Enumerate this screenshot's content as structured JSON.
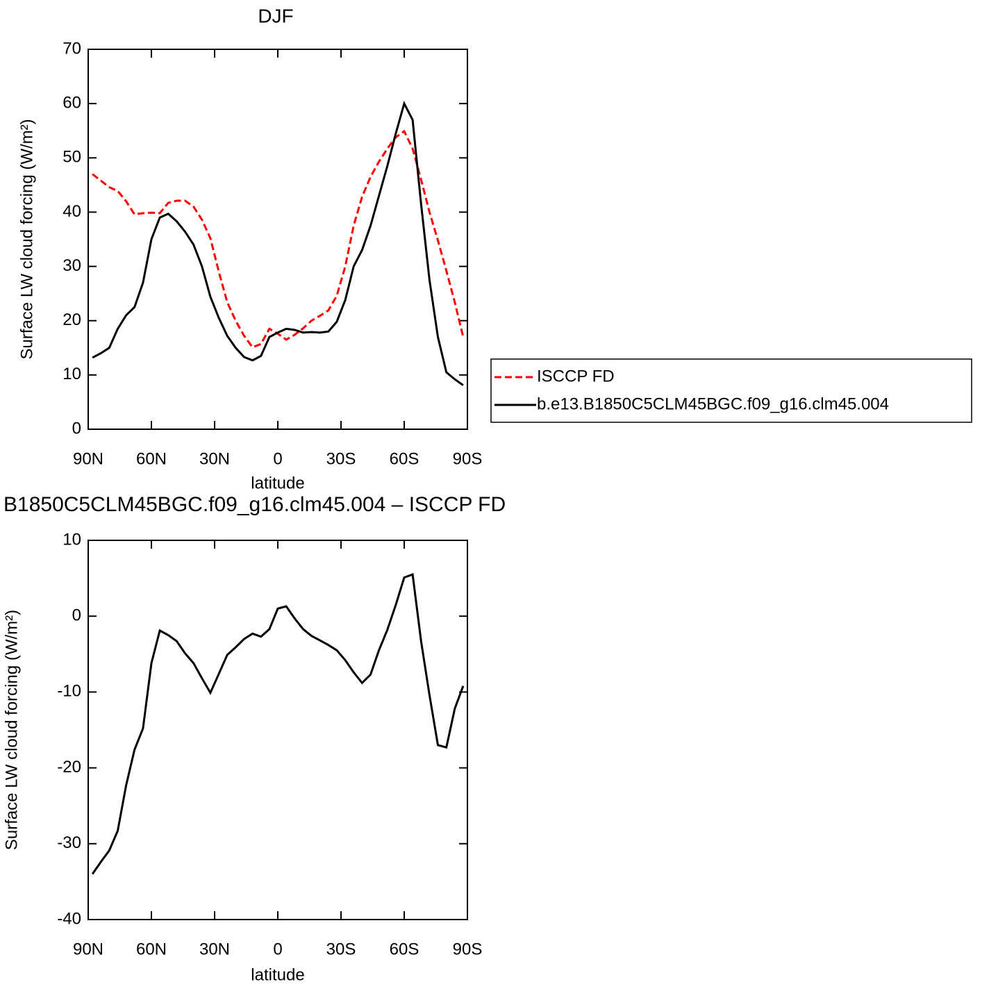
{
  "chart_data": [
    {
      "type": "line",
      "title": "DJF",
      "xlabel": "latitude",
      "ylabel": "Surface LW cloud forcing (W/m²)",
      "xlim": [
        90,
        -90
      ],
      "ylim": [
        0,
        70
      ],
      "xticks": [
        {
          "value": 90,
          "label": "90N"
        },
        {
          "value": 60,
          "label": "60N"
        },
        {
          "value": 30,
          "label": "30N"
        },
        0,
        {
          "value": -30,
          "label": "30S"
        },
        {
          "value": -60,
          "label": "60S"
        },
        {
          "value": -90,
          "label": "90S"
        }
      ],
      "yticks": [
        0,
        10,
        20,
        30,
        40,
        50,
        60,
        70
      ],
      "legend": "right",
      "x": [
        88,
        84,
        80,
        76,
        72,
        68,
        64,
        60,
        56,
        52,
        48,
        44,
        40,
        36,
        32,
        28,
        24,
        20,
        16,
        12,
        8,
        4,
        0,
        -4,
        -8,
        -12,
        -16,
        -20,
        -24,
        -28,
        -32,
        -36,
        -40,
        -44,
        -48,
        -52,
        -56,
        -60,
        -64,
        -68,
        -72,
        -76,
        -80,
        -84,
        -88
      ],
      "series": [
        {
          "name": "ISCCP FD",
          "color": "#ff0000",
          "dash": "dashed",
          "values": [
            47.0,
            45.8,
            44.6,
            43.9,
            42.0,
            39.6,
            39.8,
            39.9,
            39.8,
            41.7,
            42.1,
            42.1,
            41.0,
            38.6,
            35.2,
            29.0,
            23.4,
            20.0,
            17.2,
            15.1,
            15.7,
            18.5,
            17.6,
            16.5,
            17.4,
            18.6,
            20.0,
            20.9,
            21.9,
            24.6,
            30.0,
            37.5,
            42.8,
            46.5,
            49.3,
            51.7,
            53.8,
            54.9,
            51.7,
            46.0,
            40.0,
            34.8,
            29.2,
            23.4,
            17.0
          ]
        },
        {
          "name": "b.e13.B1850C5CLM45BGC.f09_g16.clm45.004",
          "color": "#000000",
          "dash": "solid",
          "values": [
            13.2,
            14.0,
            15.0,
            18.5,
            21.0,
            22.5,
            27.0,
            35.0,
            39.0,
            39.7,
            38.3,
            36.4,
            34.0,
            30.0,
            24.4,
            20.5,
            17.2,
            15.0,
            13.3,
            12.7,
            13.5,
            17.0,
            17.8,
            18.5,
            18.3,
            17.8,
            17.9,
            17.8,
            18.0,
            19.8,
            23.8,
            30.0,
            33.0,
            37.5,
            43.0,
            48.5,
            54.5,
            60.0,
            57.0,
            41.5,
            27.5,
            17.0,
            10.5,
            9.2,
            8.1
          ]
        }
      ]
    },
    {
      "type": "line",
      "title": "B1850C5CLM45BGC.f09_g16.clm45.004 – ISCCP FD",
      "xlabel": "latitude",
      "ylabel": "Surface LW cloud forcing (W/m²)",
      "xlim": [
        90,
        -90
      ],
      "ylim": [
        -40,
        10
      ],
      "xticks": [
        {
          "value": 90,
          "label": "90N"
        },
        {
          "value": 60,
          "label": "60N"
        },
        {
          "value": 30,
          "label": "30N"
        },
        0,
        {
          "value": -30,
          "label": "30S"
        },
        {
          "value": -60,
          "label": "60S"
        },
        {
          "value": -90,
          "label": "90S"
        }
      ],
      "yticks": [
        -40,
        -30,
        -20,
        -10,
        0,
        10
      ],
      "color": "#000000",
      "x": [
        88,
        84,
        80,
        76,
        72,
        68,
        64,
        60,
        56,
        52,
        48,
        44,
        40,
        36,
        32,
        28,
        24,
        20,
        16,
        12,
        8,
        4,
        0,
        -4,
        -8,
        -12,
        -16,
        -20,
        -24,
        -28,
        -32,
        -36,
        -40,
        -44,
        -48,
        -52,
        -56,
        -60,
        -64,
        -68,
        -72,
        -76,
        -80,
        -84,
        -88
      ],
      "values": [
        -34.0,
        -32.4,
        -30.9,
        -28.3,
        -22.3,
        -17.6,
        -14.8,
        -6.2,
        -1.9,
        -2.5,
        -3.3,
        -4.9,
        -6.2,
        -8.2,
        -10.1,
        -7.6,
        -5.1,
        -4.1,
        -3.0,
        -2.3,
        -2.7,
        -1.7,
        1.0,
        1.3,
        -0.3,
        -1.7,
        -2.6,
        -3.2,
        -3.8,
        -4.5,
        -5.8,
        -7.4,
        -8.8,
        -7.7,
        -4.5,
        -1.8,
        1.5,
        5.1,
        5.5,
        -3.3,
        -10.4,
        -17.0,
        -17.3,
        -12.2,
        -9.2
      ]
    }
  ]
}
